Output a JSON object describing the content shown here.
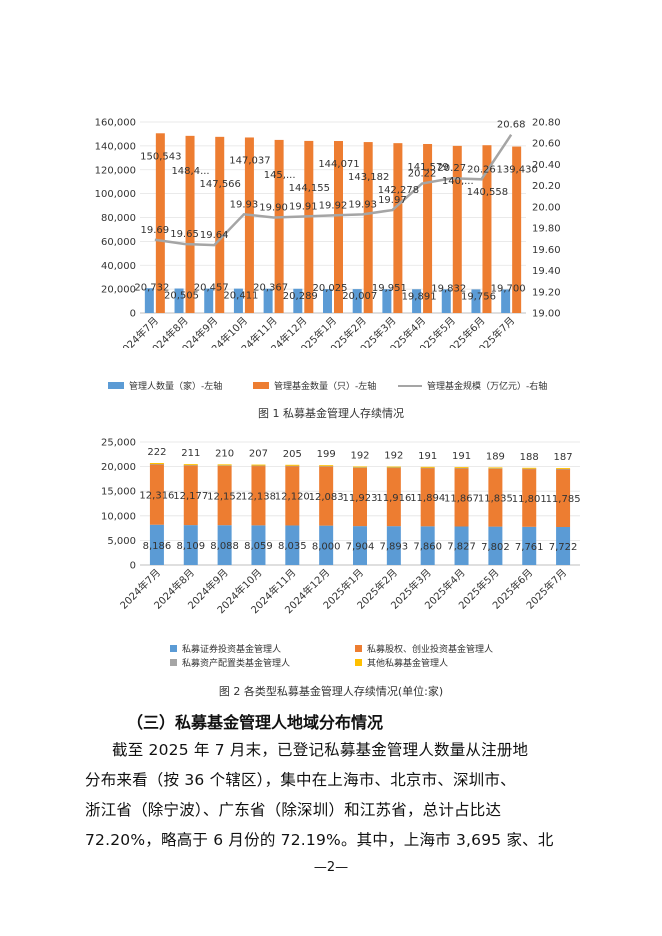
{
  "chart_data": [
    {
      "type": "bar",
      "title": "",
      "categories": [
        "2024年7月",
        "2024年8月",
        "2024年9月",
        "2024年10月",
        "2024年11月",
        "2024年12月",
        "2025年1月",
        "2025年2月",
        "2025年3月",
        "2025年4月",
        "2025年5月",
        "2025年6月",
        "2025年7月"
      ],
      "series": [
        {
          "name": "管理人数量（家）-左轴",
          "type": "bar",
          "axis": "left",
          "color": "#5B9BD5",
          "values": [
            20732,
            20505,
            20457,
            20411,
            20367,
            20289,
            20025,
            20007,
            19951,
            19891,
            19832,
            19756,
            19700
          ],
          "labels": [
            "20,732",
            "20,505",
            "20,457",
            "20,411",
            "20,367",
            "20,289",
            "20,025",
            "20,007",
            "19,951",
            "19,891",
            "19,832",
            "19,756",
            "19,700"
          ]
        },
        {
          "name": "管理基金数量（只）-左轴",
          "type": "bar",
          "axis": "left",
          "color": "#ED7D31",
          "values": [
            150543,
            148400,
            147566,
            147037,
            145000,
            144155,
            144071,
            143182,
            142278,
            141579,
            140000,
            140558,
            139430
          ],
          "labels": [
            "150,543",
            "148,4...",
            "147,566",
            "147,037",
            "145,...",
            "144,155",
            "144,071",
            "143,182",
            "142,278",
            "141,579",
            "140,...",
            "140,558",
            "139,430"
          ]
        },
        {
          "name": "管理基金规模（万亿元）-右轴",
          "type": "line",
          "axis": "right",
          "color": "#A5A5A5",
          "values": [
            19.69,
            19.65,
            19.64,
            19.93,
            19.9,
            19.91,
            19.92,
            19.93,
            19.97,
            20.22,
            20.27,
            20.26,
            20.68
          ],
          "labels": [
            "19.69",
            "19.65",
            "19.64",
            "19.93",
            "19.90",
            "19.91",
            "19.92",
            "19.93",
            "19.97",
            "20.22",
            "20.27",
            "20.26",
            "20.68"
          ]
        }
      ],
      "ylim_left": [
        0,
        160000
      ],
      "yticks_left": [
        "0",
        "20,000",
        "40,000",
        "60,000",
        "80,000",
        "100,000",
        "120,000",
        "140,000",
        "160,000"
      ],
      "ylim_right": [
        19.0,
        20.8
      ],
      "yticks_right": [
        "19.00",
        "19.20",
        "19.40",
        "19.60",
        "19.80",
        "20.00",
        "20.20",
        "20.40",
        "20.60",
        "20.80"
      ],
      "legend": "bottom"
    },
    {
      "type": "bar",
      "stacked": true,
      "title": "",
      "categories": [
        "2024年7月",
        "2024年8月",
        "2024年9月",
        "2024年10月",
        "2024年11月",
        "2024年12月",
        "2025年1月",
        "2025年2月",
        "2025年3月",
        "2025年4月",
        "2025年5月",
        "2025年6月",
        "2025年7月"
      ],
      "series": [
        {
          "name": "私募证券投资基金管理人",
          "color": "#5B9BD5",
          "values": [
            8186,
            8109,
            8088,
            8059,
            8035,
            8000,
            7904,
            7893,
            7860,
            7827,
            7802,
            7761,
            7722
          ],
          "labels": [
            "8,186",
            "8,109",
            "8,088",
            "8,059",
            "8,035",
            "8,000",
            "7,904",
            "7,893",
            "7,860",
            "7,827",
            "7,802",
            "7,761",
            "7,722"
          ]
        },
        {
          "name": "私募股权、创业投资基金管理人",
          "color": "#ED7D31",
          "values": [
            12316,
            12177,
            12152,
            12138,
            12120,
            12083,
            11923,
            11916,
            11894,
            11867,
            11835,
            11801,
            11785
          ],
          "labels": [
            "12,316",
            "12,177",
            "12,152",
            "12,138",
            "12,120",
            "12,083",
            "11,923",
            "11,916",
            "11,894",
            "11,867",
            "11,835",
            "11,801",
            "11,785"
          ]
        },
        {
          "name": "私募资产配置类基金管理人",
          "color": "#A5A5A5",
          "values": [
            8,
            8,
            8,
            8,
            8,
            8,
            8,
            8,
            8,
            8,
            8,
            8,
            8
          ],
          "labels": []
        },
        {
          "name": "其他私募基金管理人",
          "color": "#FFC000",
          "values": [
            222,
            211,
            210,
            207,
            205,
            199,
            192,
            192,
            191,
            191,
            189,
            188,
            187
          ],
          "labels": [
            "222",
            "211",
            "210",
            "207",
            "205",
            "199",
            "192",
            "192",
            "191",
            "191",
            "189",
            "188",
            "187"
          ]
        }
      ],
      "ylim": [
        0,
        25000
      ],
      "yticks": [
        "0",
        "5,000",
        "10,000",
        "15,000",
        "20,000",
        "25,000"
      ],
      "legend": "bottom"
    }
  ],
  "captions": {
    "fig1": "图 1  私募基金管理人存续情况",
    "fig2": "图 2  各类型私募基金管理人存续情况(单位:家)"
  },
  "section_title": "（三）私募基金管理人地域分布情况",
  "paragraph_lines": [
    "截至 2025 年 7 月末，已登记私募基金管理人数量从注册地",
    "分布来看（按 36 个辖区），集中在上海市、北京市、深圳市、",
    "浙江省（除宁波）、广东省（除深圳）和江苏省，总计占比达",
    "72.20%，略高于 6 月份的 72.19%。其中，上海市 3,695 家、北"
  ],
  "page_number": "—2—"
}
